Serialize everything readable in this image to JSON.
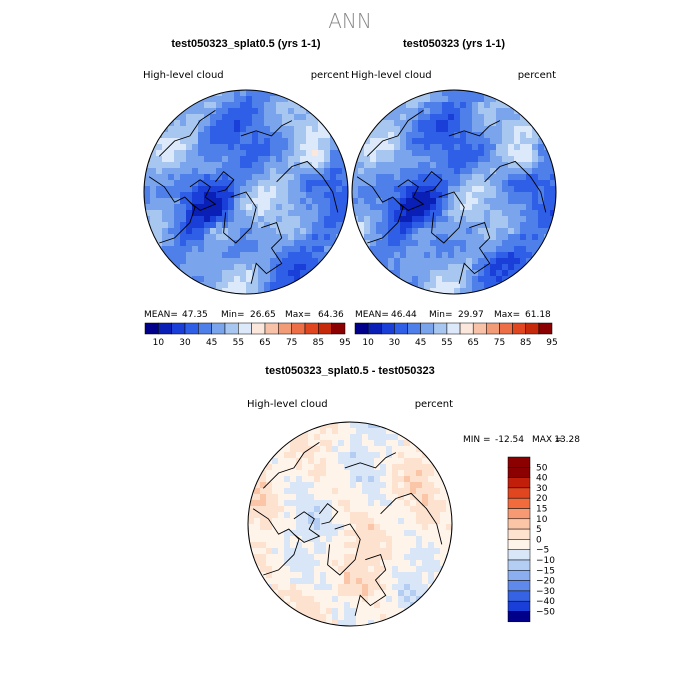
{
  "chart_data": [
    {
      "type": "heatmap",
      "projection": "north-polar-stereographic",
      "title": "test050323_splat0.5 (yrs 1-1)",
      "left_label": "High-level  cloud",
      "right_label": "percent",
      "stats": {
        "mean_label": "MEAN=",
        "mean": "47.35",
        "min_label": "Min=",
        "min": "26.65",
        "max_label": "Max=",
        "max": "64.36"
      },
      "colorbar": {
        "ticks": [
          "10",
          "30",
          "45",
          "55",
          "65",
          "75",
          "85",
          "95"
        ]
      }
    },
    {
      "type": "heatmap",
      "projection": "north-polar-stereographic",
      "title": "test050323 (yrs 1-1)",
      "left_label": "High-level  cloud",
      "right_label": "percent",
      "stats": {
        "mean_label": "MEAN=",
        "mean": "46.44",
        "min_label": "Min=",
        "min": "29.97",
        "max_label": "Max=",
        "max": "61.18"
      },
      "colorbar": {
        "ticks": [
          "10",
          "30",
          "45",
          "55",
          "65",
          "75",
          "85",
          "95"
        ]
      }
    },
    {
      "type": "heatmap",
      "projection": "north-polar-stereographic",
      "title": "test050323_splat0.5 - test050323",
      "left_label": "High-level  cloud",
      "right_label": "percent",
      "stats": {
        "min_label": "MIN =",
        "min": "-12.54",
        "max_label": "MAX =",
        "max": "13.28"
      },
      "colorbar": {
        "ticks": [
          "50",
          "40",
          "30",
          "20",
          "15",
          "10",
          "5",
          "0",
          "−5",
          "−10",
          "−15",
          "−20",
          "−30",
          "−40",
          "−50"
        ]
      }
    }
  ],
  "main_title": "ANN",
  "colors": {
    "seq_palette": [
      "#00008b",
      "#0a1fb5",
      "#1a3fd8",
      "#2f5fe6",
      "#4f7fe8",
      "#7aa4ec",
      "#a8c7f0",
      "#dbe9fa",
      "#fbe7dc",
      "#f7c2a8",
      "#f29b77",
      "#ec6f48",
      "#e0461f",
      "#c72a0a",
      "#8b0000"
    ],
    "div_palette": [
      "#8b0000",
      "#c21f0a",
      "#e0461f",
      "#f26b3c",
      "#f79a73",
      "#fbc5a8",
      "#fde2d0",
      "#fff4ea",
      "#d8e6f8",
      "#b4cdf2",
      "#8aaef0",
      "#5f8aeb",
      "#3563e3",
      "#1a3fd8",
      "#00008b"
    ]
  }
}
